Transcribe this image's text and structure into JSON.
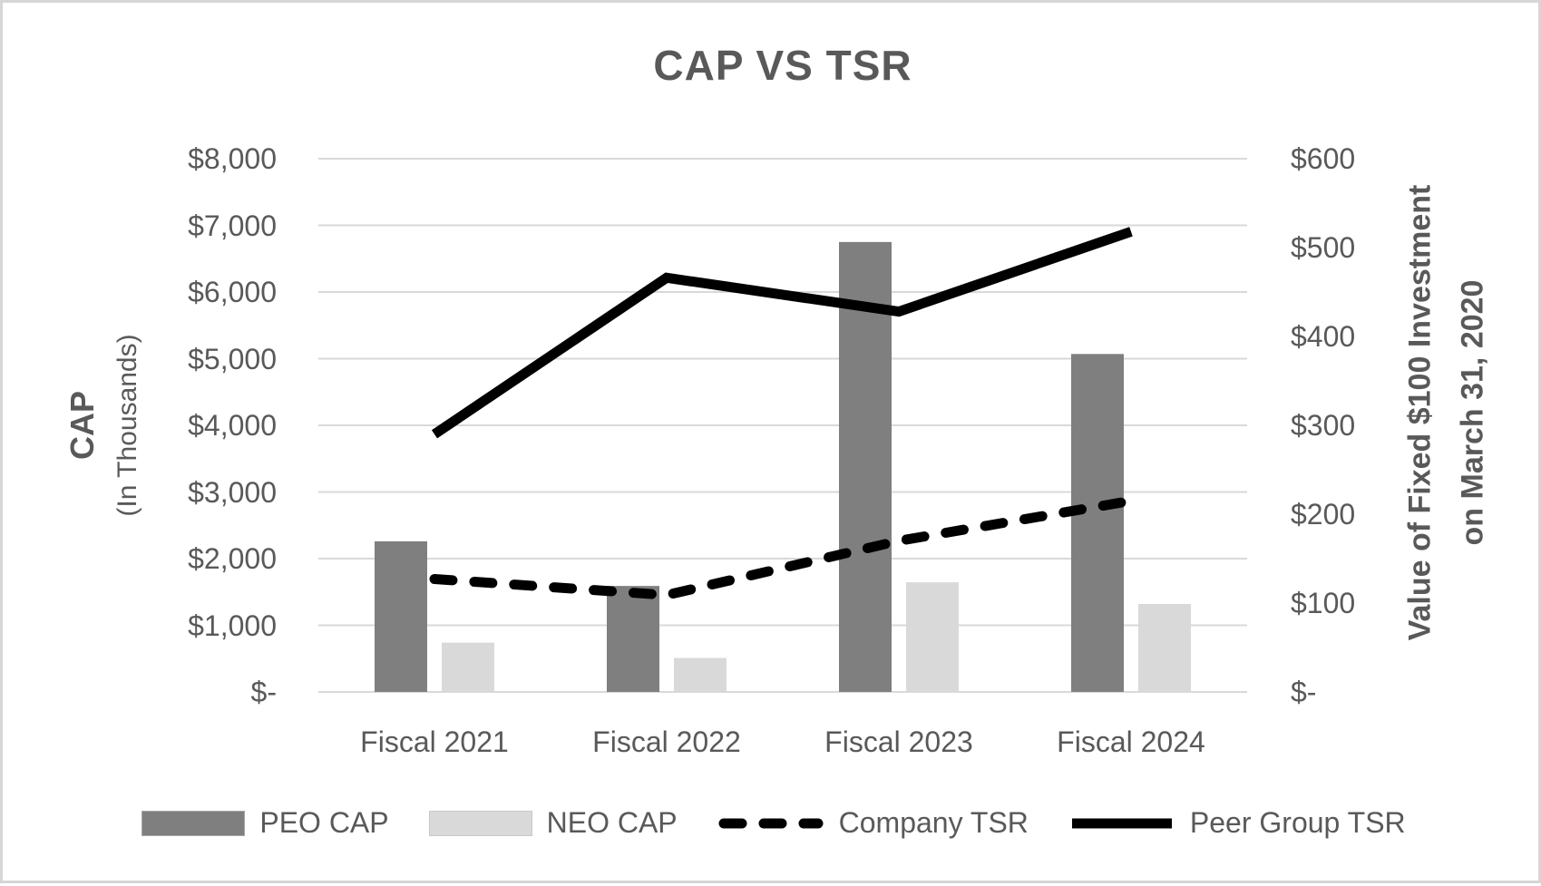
{
  "title": "CAP VS TSR",
  "chart_data": {
    "type": "combo",
    "subtype": "grouped-bars-with-lines-dual-axis",
    "categories": [
      "Fiscal 2021",
      "Fiscal 2022",
      "Fiscal 2023",
      "Fiscal 2024"
    ],
    "series": [
      {
        "name": "PEO CAP",
        "type": "bar",
        "axis": "left",
        "color": "#7f7f7f",
        "values": [
          2260,
          1590,
          6750,
          5070
        ]
      },
      {
        "name": "NEO CAP",
        "type": "bar",
        "axis": "left",
        "color": "#d9d9d9",
        "values": [
          740,
          510,
          1645,
          1320
        ]
      },
      {
        "name": "Company TSR",
        "type": "line",
        "line_style": "dashed",
        "axis": "right",
        "color": "#000000",
        "values": [
          127,
          109,
          170,
          215
        ]
      },
      {
        "name": "Peer Group TSR",
        "type": "line",
        "line_style": "solid",
        "axis": "right",
        "color": "#000000",
        "values": [
          290,
          466,
          428,
          518
        ]
      }
    ],
    "left_axis": {
      "title_line1": "CAP",
      "title_line2": "(In Thousands)",
      "min": 0,
      "max": 8000,
      "tick_step": 1000,
      "tick_labels_top_to_bottom": [
        "$8,000",
        "$7,000",
        "$6,000",
        "$5,000",
        "$4,000",
        "$3,000",
        "$2,000",
        "$1,000",
        "$-"
      ]
    },
    "right_axis": {
      "title_line1": "Value of Fixed $100 Investment",
      "title_line2": "on March 31, 2020",
      "min": 0,
      "max": 600,
      "tick_step": 100,
      "tick_labels_top_to_bottom": [
        "$600",
        "$500",
        "$400",
        "$300",
        "$200",
        "$100",
        "$-"
      ]
    },
    "grid": "horizontal-only",
    "legend_position": "bottom",
    "legend_entries": [
      "PEO CAP",
      "NEO CAP",
      "Company TSR",
      "Peer Group TSR"
    ]
  },
  "colors": {
    "peo_bar": "#7f7f7f",
    "neo_bar": "#d9d9d9",
    "line_black": "#000000",
    "gridline": "#d9d9d9",
    "text": "#595959",
    "frame_border": "#d6d6d6",
    "background": "#ffffff"
  }
}
